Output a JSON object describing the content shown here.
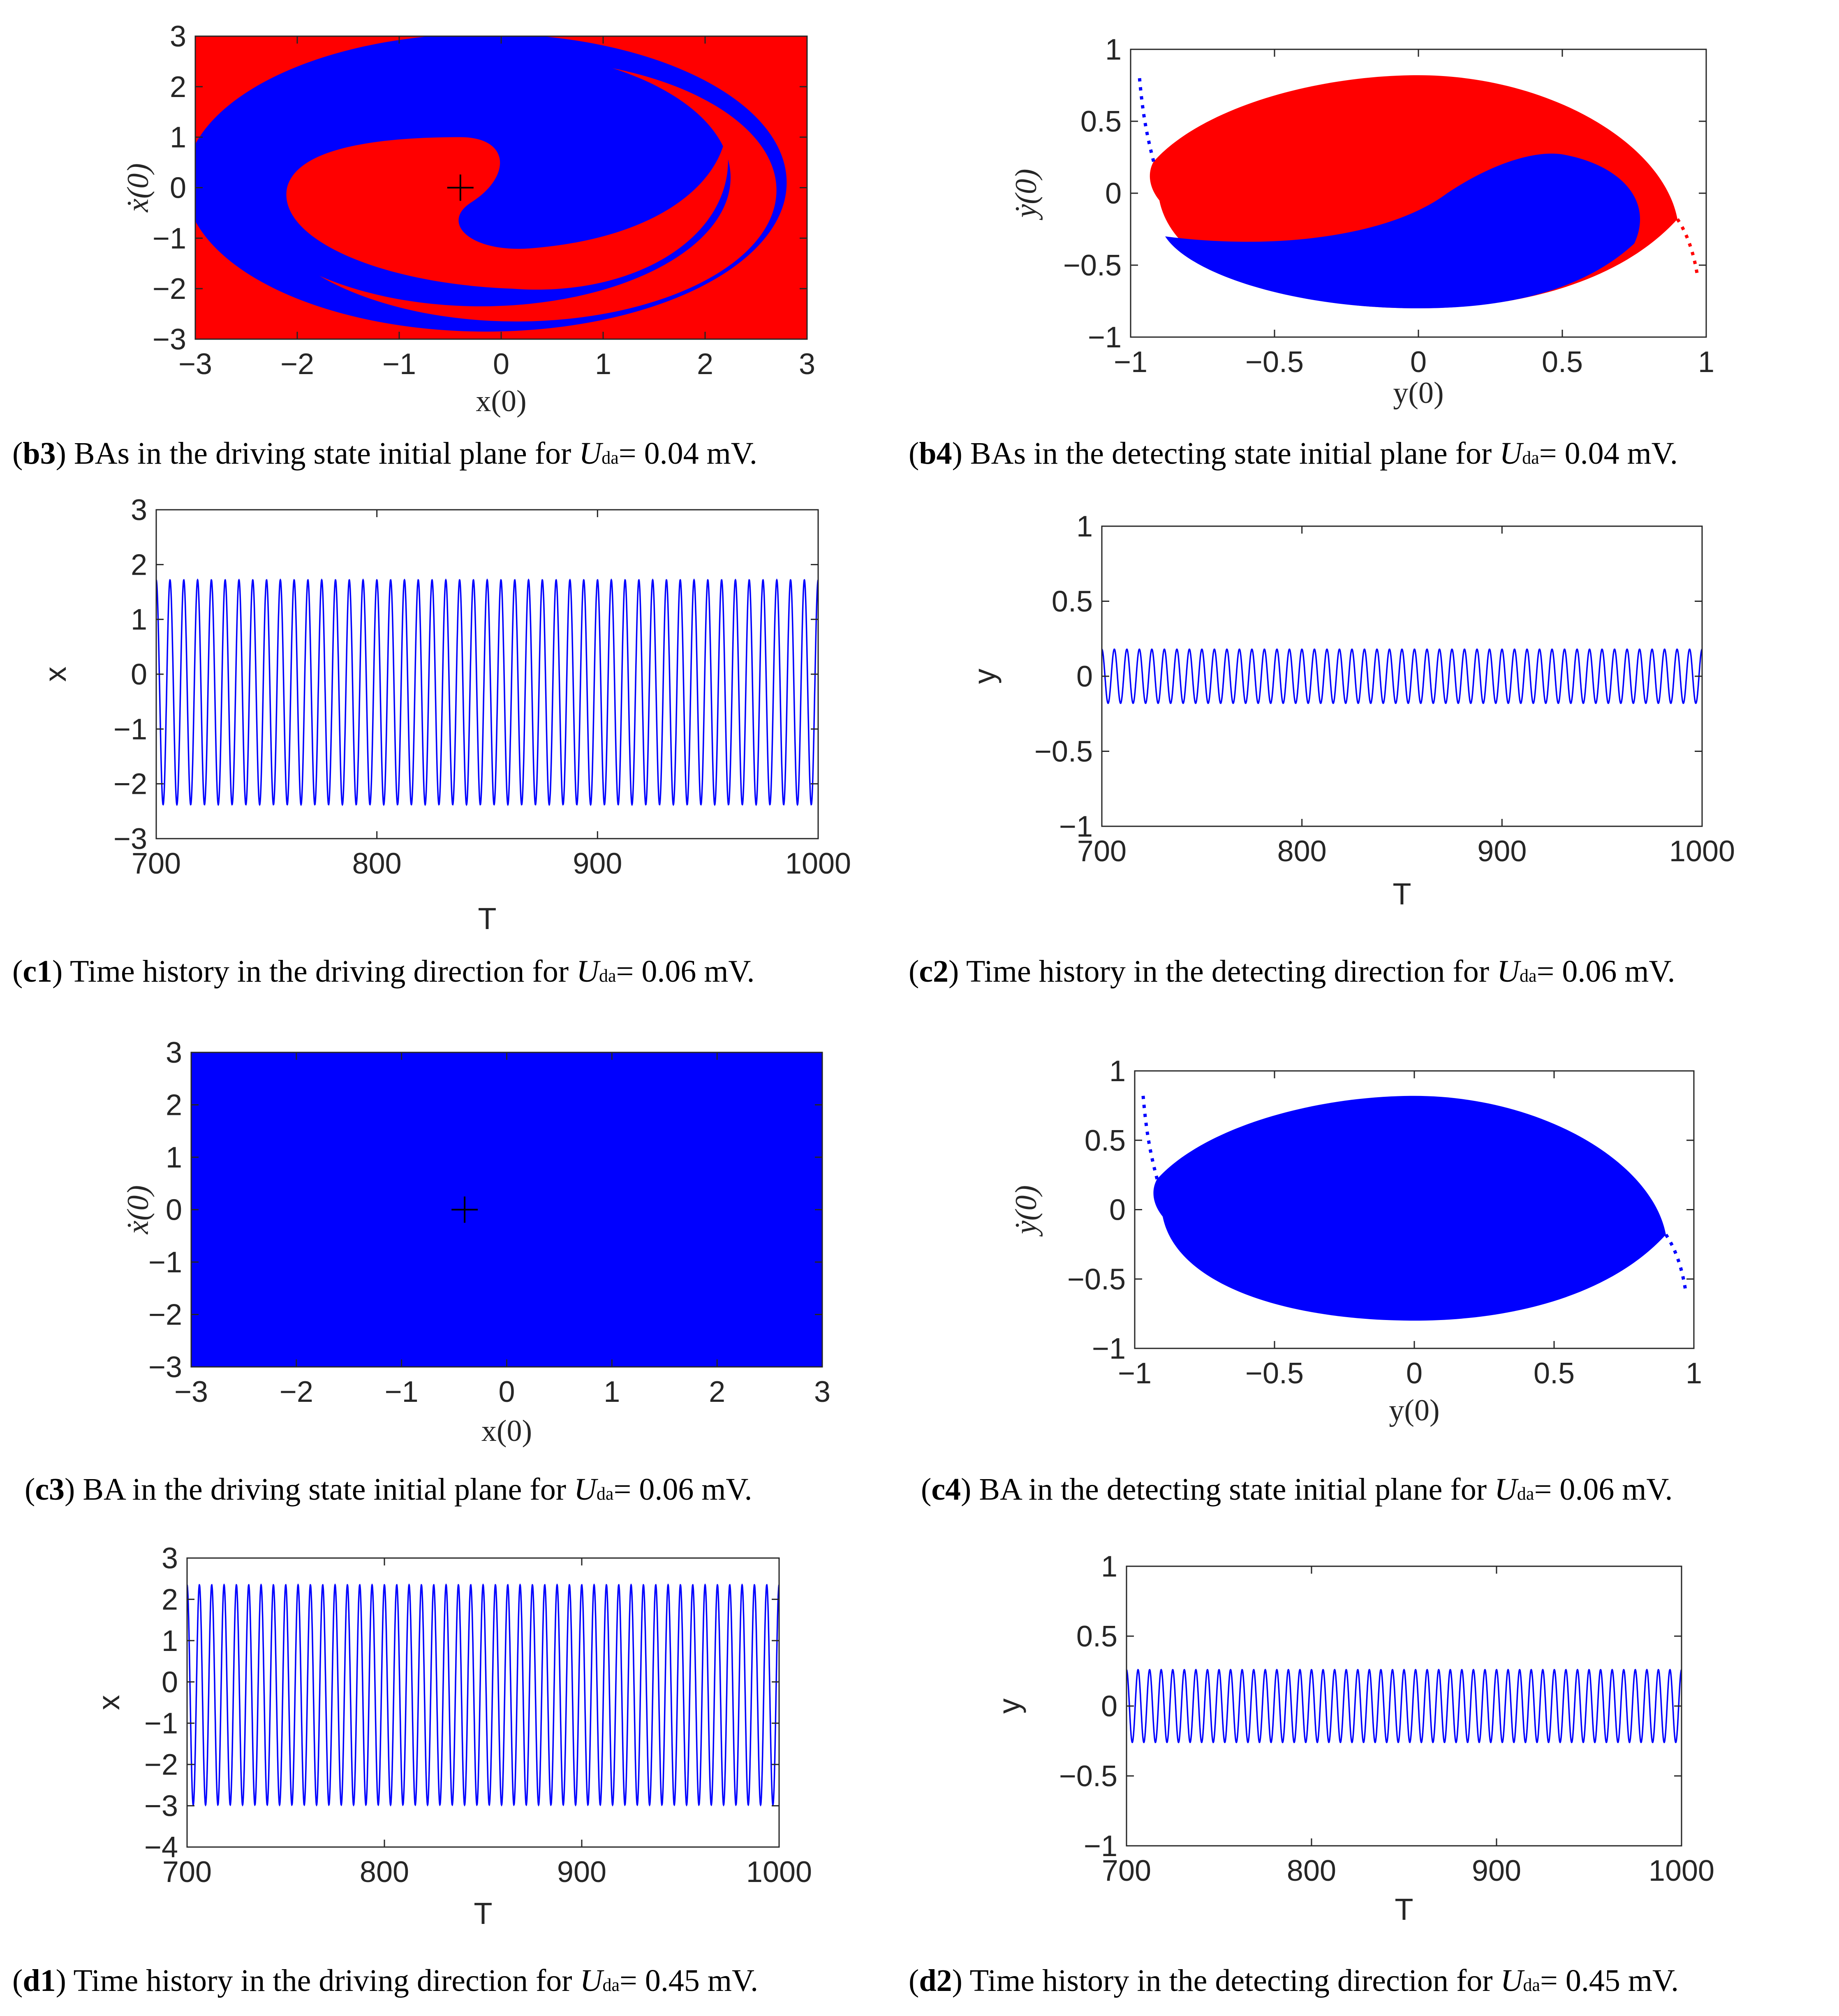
{
  "colors": {
    "red": "#ff0000",
    "blue": "#0000ff",
    "trace": "#0000ff",
    "axis": "#262626"
  },
  "captions": {
    "b3": {
      "tag": "b3",
      "text": " BAs in the driving state initial plane for ",
      "sym": "U",
      "sub": "da",
      "tail": "= 0.04 mV."
    },
    "b4": {
      "tag": "b4",
      "text": " BAs in the detecting state initial plane for ",
      "sym": "U",
      "sub": "da",
      "tail": "= 0.04 mV."
    },
    "c1": {
      "tag": "c1",
      "text": " Time history in the driving direction for ",
      "sym": "U",
      "sub": "da",
      "tail": "= 0.06 mV."
    },
    "c2": {
      "tag": "c2",
      "text": " Time history in the detecting direction for ",
      "sym": "U",
      "sub": "da",
      "tail": "= 0.06 mV."
    },
    "c3": {
      "tag": "c3",
      "text": " BA in the driving state initial plane for ",
      "sym": "U",
      "sub": "da",
      "tail": "= 0.06 mV."
    },
    "c4": {
      "tag": "c4",
      "text": " BA in the detecting state initial plane for ",
      "sym": "U",
      "sub": "da",
      "tail": "= 0.06 mV."
    },
    "d1": {
      "tag": "d1",
      "text": " Time history in the driving direction for ",
      "sym": "U",
      "sub": "da",
      "tail": "= 0.45 mV."
    },
    "d2": {
      "tag": "d2",
      "text": " Time history in the detecting direction for ",
      "sym": "U",
      "sub": "da",
      "tail": "= 0.45 mV."
    }
  },
  "chart_data": [
    {
      "id": "b3",
      "type": "heatmap",
      "title": "",
      "xlabel": "x(0)",
      "ylabel": "ẋ(0)",
      "xlim": [
        -3,
        3
      ],
      "ylim": [
        -3,
        3
      ],
      "xticks": [
        -3,
        -2,
        -1,
        0,
        1,
        2,
        3
      ],
      "yticks": [
        -3,
        -2,
        -1,
        0,
        1,
        2,
        3
      ],
      "regions": [
        "red",
        "blue"
      ],
      "marker": {
        "symbol": "+",
        "x": -0.4,
        "y": 0
      }
    },
    {
      "id": "b4",
      "type": "heatmap",
      "title": "",
      "xlabel": "y(0)",
      "ylabel": "ẏ(0)",
      "xlim": [
        -1,
        1
      ],
      "ylim": [
        -1,
        1
      ],
      "xticks": [
        -1,
        -0.5,
        0,
        0.5,
        1
      ],
      "yticks": [
        -1,
        -0.5,
        0,
        0.5,
        1
      ],
      "regions": [
        "red",
        "blue"
      ]
    },
    {
      "id": "c1",
      "type": "line",
      "title": "",
      "xlabel": "T",
      "ylabel": "x",
      "xlim": [
        700,
        1000
      ],
      "ylim": [
        -3,
        3
      ],
      "xticks": [
        700,
        800,
        900,
        1000
      ],
      "yticks": [
        -3,
        -2,
        -1,
        0,
        1,
        2,
        3
      ],
      "series": [
        {
          "name": "x(T)",
          "max": 1.72,
          "min": -2.38,
          "cycles": 48
        }
      ]
    },
    {
      "id": "c2",
      "type": "line",
      "title": "",
      "xlabel": "T",
      "ylabel": "y",
      "xlim": [
        700,
        1000
      ],
      "ylim": [
        -1,
        1
      ],
      "xticks": [
        700,
        800,
        900,
        1000
      ],
      "yticks": [
        -1,
        -0.5,
        0,
        0.5,
        1
      ],
      "series": [
        {
          "name": "y(T)",
          "max": 0.18,
          "min": -0.18,
          "cycles": 48
        }
      ]
    },
    {
      "id": "c3",
      "type": "heatmap",
      "title": "",
      "xlabel": "x(0)",
      "ylabel": "ẋ(0)",
      "xlim": [
        -3,
        3
      ],
      "ylim": [
        -3,
        3
      ],
      "xticks": [
        -3,
        -2,
        -1,
        0,
        1,
        2,
        3
      ],
      "yticks": [
        -3,
        -2,
        -1,
        0,
        1,
        2,
        3
      ],
      "regions": [
        "blue"
      ],
      "marker": {
        "symbol": "+",
        "x": -0.4,
        "y": 0
      }
    },
    {
      "id": "c4",
      "type": "heatmap",
      "title": "",
      "xlabel": "y(0)",
      "ylabel": "ẏ(0)",
      "xlim": [
        -1,
        1
      ],
      "ylim": [
        -1,
        1
      ],
      "xticks": [
        -1,
        -0.5,
        0,
        0.5,
        1
      ],
      "yticks": [
        -1,
        -0.5,
        0,
        0.5,
        1
      ],
      "regions": [
        "blue"
      ]
    },
    {
      "id": "d1",
      "type": "line",
      "title": "",
      "xlabel": "T",
      "ylabel": "x",
      "xlim": [
        700,
        1000
      ],
      "ylim": [
        -4,
        3
      ],
      "xticks": [
        700,
        800,
        900,
        1000
      ],
      "yticks": [
        -4,
        -3,
        -2,
        -1,
        0,
        1,
        2,
        3
      ],
      "series": [
        {
          "name": "x(T)",
          "max": 2.35,
          "min": -2.98,
          "cycles": 48
        }
      ]
    },
    {
      "id": "d2",
      "type": "line",
      "title": "",
      "xlabel": "T",
      "ylabel": "y",
      "xlim": [
        700,
        1000
      ],
      "ylim": [
        -1,
        1
      ],
      "xticks": [
        700,
        800,
        900,
        1000
      ],
      "yticks": [
        -1,
        -0.5,
        0,
        0.5,
        1
      ],
      "series": [
        {
          "name": "y(T)",
          "max": 0.26,
          "min": -0.26,
          "cycles": 48
        }
      ]
    }
  ]
}
